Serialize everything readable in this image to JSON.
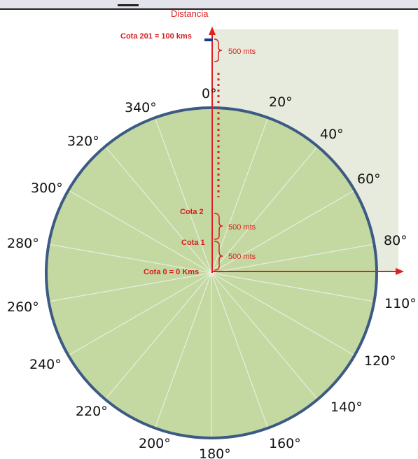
{
  "header": {
    "axis_title": "Distancia"
  },
  "labels": {
    "top": "Cota 201 = 100 kms",
    "cota2": "Cota 2",
    "cota1": "Cota 1",
    "origin": "Cota 0 = 0 Kms"
  },
  "spacing_labels": {
    "upper": "500 mts",
    "middle": "500 mts",
    "lower": "500 mts"
  },
  "degrees": [
    "0°",
    "20°",
    "40°",
    "60°",
    "80°",
    "110°",
    "120°",
    "140°",
    "160°",
    "180°",
    "200°",
    "220°",
    "240°",
    "260°",
    "280°",
    "300°",
    "320°",
    "340°"
  ],
  "colors": {
    "disc": "#c4d8a1",
    "rim": "#3c5a84",
    "spokes": "#e8eede",
    "quadrant": "#e6ebdd",
    "axis": "#e02020"
  }
}
